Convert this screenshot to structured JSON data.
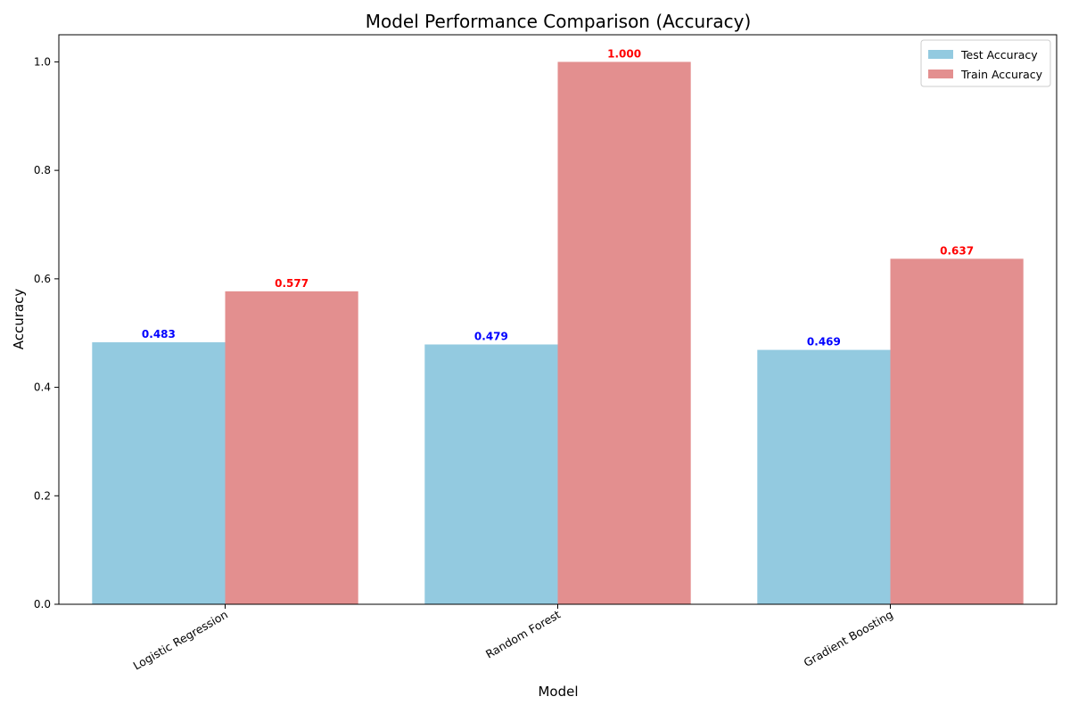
{
  "chart_data": {
    "type": "bar",
    "title": "Model Performance Comparison (Accuracy)",
    "xlabel": "Model",
    "ylabel": "Accuracy",
    "categories": [
      "Logistic Regression",
      "Random Forest",
      "Gradient Boosting"
    ],
    "series": [
      {
        "name": "Test Accuracy",
        "values": [
          0.483,
          0.479,
          0.469
        ],
        "labels": [
          "0.483",
          "0.479",
          "0.469"
        ],
        "color": "#87c4dd",
        "label_color": "#0000ff"
      },
      {
        "name": "Train Accuracy",
        "values": [
          0.577,
          1.0,
          0.637
        ],
        "labels": [
          "0.577",
          "1.000",
          "0.637"
        ],
        "color": "#e08383",
        "label_color": "#ff0000"
      }
    ],
    "ylim": [
      0,
      1.05
    ],
    "yticks": [
      0.0,
      0.2,
      0.4,
      0.6,
      0.8,
      1.0
    ],
    "ytick_labels": [
      "0.0",
      "0.2",
      "0.4",
      "0.6",
      "0.8",
      "1.0"
    ],
    "grid": false,
    "legend_position": "top-right",
    "bar_alpha": 0.9
  }
}
